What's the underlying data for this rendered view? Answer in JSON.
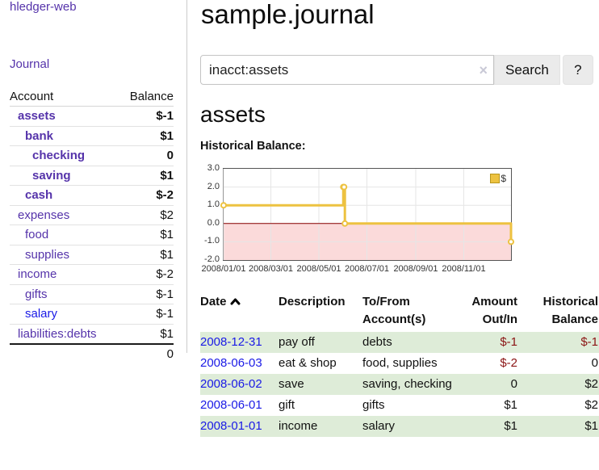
{
  "app": {
    "title": "hledger-web"
  },
  "sidebar": {
    "nav": {
      "journal_label": "Journal"
    },
    "accounts": {
      "headers": {
        "account": "Account",
        "balance": "Balance"
      },
      "rows": [
        {
          "name": "assets",
          "balance": "$-1",
          "depth": 1,
          "bold": true,
          "neg": "dark",
          "color": "purple"
        },
        {
          "name": "bank",
          "balance": "$1",
          "depth": 2,
          "bold": true,
          "neg": "none",
          "color": "purple"
        },
        {
          "name": "checking",
          "balance": "0",
          "depth": 3,
          "bold": true,
          "neg": "none",
          "color": "purple"
        },
        {
          "name": "saving",
          "balance": "$1",
          "depth": 3,
          "bold": true,
          "neg": "none",
          "color": "purple"
        },
        {
          "name": "cash",
          "balance": "$-2",
          "depth": 2,
          "bold": true,
          "neg": "dark",
          "color": "purple"
        },
        {
          "name": "expenses",
          "balance": "$2",
          "depth": 1,
          "bold": false,
          "neg": "none",
          "color": "purple"
        },
        {
          "name": "food",
          "balance": "$1",
          "depth": 2,
          "bold": false,
          "neg": "none",
          "color": "purple"
        },
        {
          "name": "supplies",
          "balance": "$1",
          "depth": 2,
          "bold": false,
          "neg": "none",
          "color": "purple"
        },
        {
          "name": "income",
          "balance": "$-2",
          "depth": 1,
          "bold": false,
          "neg": "light",
          "color": "purple"
        },
        {
          "name": "gifts",
          "balance": "$-1",
          "depth": 2,
          "bold": false,
          "neg": "light",
          "color": "purple"
        },
        {
          "name": "salary",
          "balance": "$-1",
          "depth": 2,
          "bold": false,
          "neg": "light",
          "color": "blue"
        },
        {
          "name": "liabilities:debts",
          "balance": "$1",
          "depth": 1,
          "bold": false,
          "neg": "none",
          "color": "purple"
        }
      ],
      "total": "0"
    }
  },
  "main": {
    "title": "sample.journal",
    "search": {
      "value": "inacct:assets",
      "clear_icon": "×",
      "button": "Search",
      "help_button": "?"
    },
    "account_heading": "assets",
    "chart_label": "Historical Balance:"
  },
  "chart_data": {
    "type": "line",
    "title": "Historical Balance:",
    "style": "step",
    "x_range": [
      "2008-01-01",
      "2008-12-31"
    ],
    "ylim": [
      -2,
      3
    ],
    "x_ticks": [
      "2008/01/01",
      "2008/03/01",
      "2008/05/01",
      "2008/07/01",
      "2008/09/01",
      "2008/11/01"
    ],
    "y_ticks": [
      "3.0",
      "2.0",
      "1.0",
      "0.0",
      "-1.0",
      "-2.0"
    ],
    "grid": true,
    "legend_position": "top-right",
    "series": [
      {
        "name": "$",
        "color": "#edc240",
        "points": [
          [
            "2008-01-01",
            1
          ],
          [
            "2008-06-01",
            2
          ],
          [
            "2008-06-02",
            2
          ],
          [
            "2008-06-03",
            0
          ],
          [
            "2008-12-31",
            -1
          ]
        ]
      }
    ],
    "negative_region": {
      "below": 0,
      "fill": "#fbdada",
      "zero_line": "#8b0000"
    }
  },
  "register": {
    "headers": {
      "date": "Date",
      "description": "Description",
      "account": "To/From Account(s)",
      "amount": "Amount Out/In",
      "balance": "Historical Balance"
    },
    "rows": [
      {
        "date": "2008-12-31",
        "description": "pay off",
        "account": "debts",
        "amount": "$-1",
        "balance": "$-1",
        "amount_neg": true,
        "balance_neg": true
      },
      {
        "date": "2008-06-03",
        "description": "eat & shop",
        "account": "food, supplies",
        "amount": "$-2",
        "balance": "0",
        "amount_neg": true,
        "balance_neg": false
      },
      {
        "date": "2008-06-02",
        "description": "save",
        "account": "saving, checking",
        "amount": "0",
        "balance": "$2",
        "amount_neg": false,
        "balance_neg": false
      },
      {
        "date": "2008-06-01",
        "description": "gift",
        "account": "gifts",
        "amount": "$1",
        "balance": "$2",
        "amount_neg": false,
        "balance_neg": false
      },
      {
        "date": "2008-01-01",
        "description": "income",
        "account": "salary",
        "amount": "$1",
        "balance": "$1",
        "amount_neg": false,
        "balance_neg": false
      }
    ]
  },
  "colors": {
    "link_purple": "#5533aa",
    "link_blue": "#1a1ae6",
    "negative_dark_red": "#8b1414",
    "negative_muted_red": "#b36b6b",
    "row_stripe_green": "#deecd8",
    "series_yellow": "#edc240",
    "negative_region_pink": "#fbdada",
    "zero_line_red": "#8b0000",
    "chart_border_gray": "#545454",
    "button_gray": "#ebebeb"
  }
}
